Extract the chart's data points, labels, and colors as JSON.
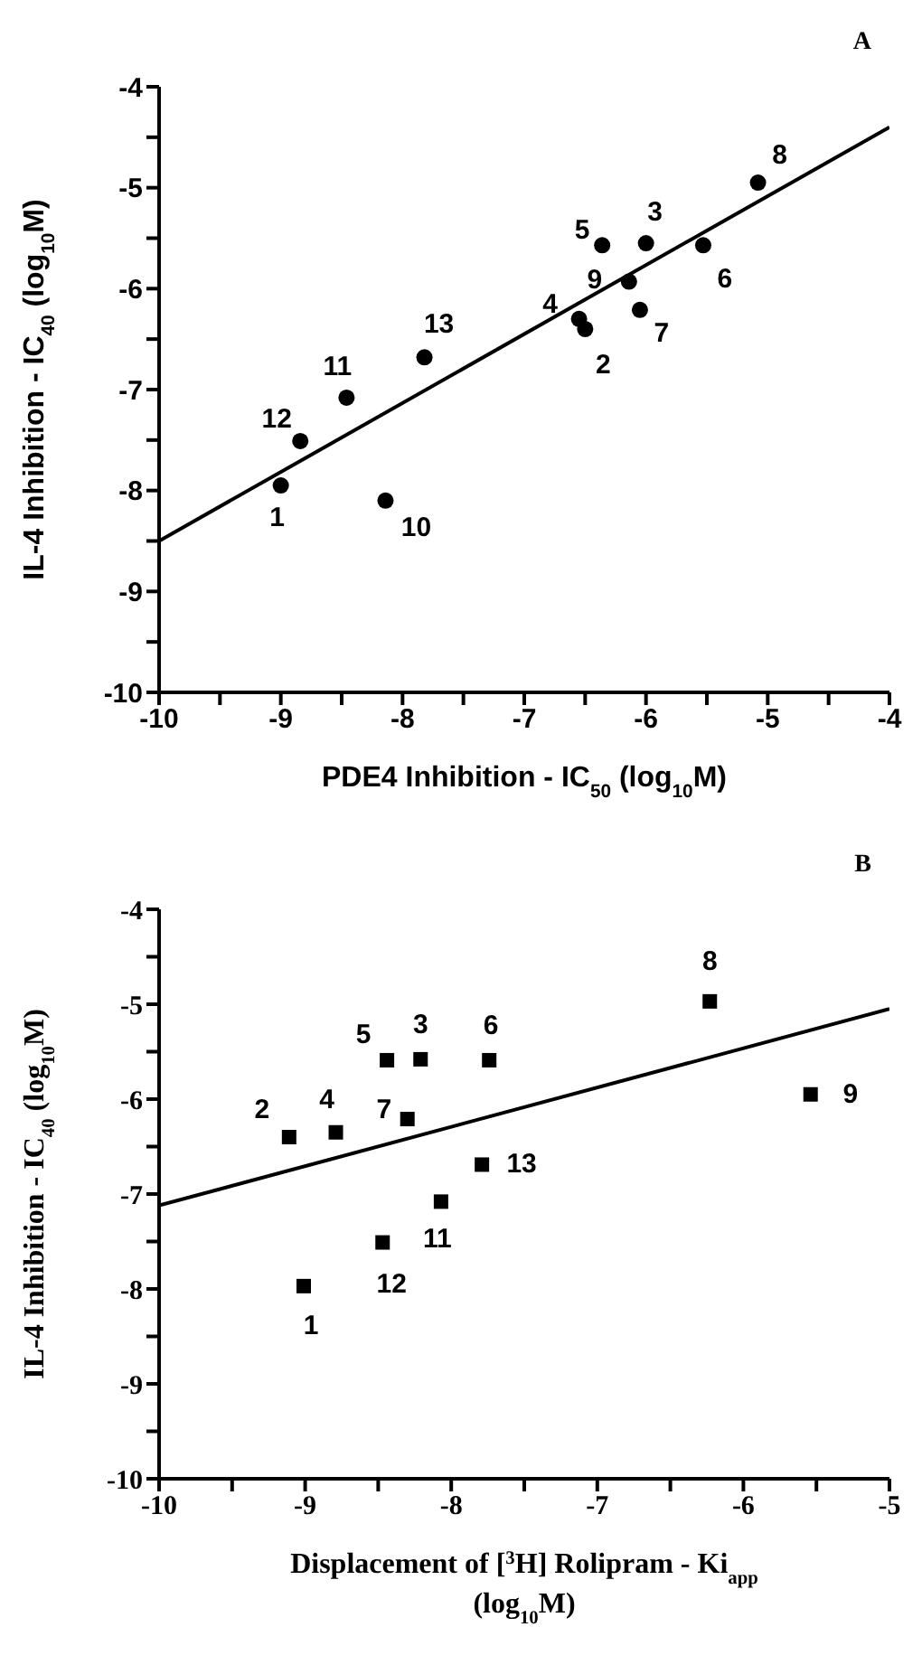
{
  "chart_data": [
    {
      "type": "scatter",
      "title": "A",
      "xlabel": "PDE4 Inhibition - IC$_{50}$ (log$_{10}$M)",
      "ylabel": "IL-4 Inhibition - IC$_{40}$ (log$_{10}$M)",
      "series": [
        {
          "color": "#000000",
          "marker": "circle",
          "x": [
            -9.0,
            -6.5,
            -6.0,
            -6.55,
            -6.36,
            -5.53,
            -6.05,
            -5.08,
            -6.14,
            -8.14,
            -8.46,
            -8.84,
            -7.82
          ],
          "values": [
            -7.95,
            -6.4,
            -5.55,
            -6.3,
            -5.57,
            -5.57,
            -6.21,
            -4.95,
            -5.93,
            -8.1,
            -7.08,
            -7.51,
            -6.68
          ]
        },
        {
          "type": "line",
          "color": "#000000",
          "x": [
            -10,
            -4
          ],
          "values": [
            -8.5,
            -4.4
          ]
        }
      ],
      "annotations": [
        {
          "text": "1",
          "x": -9.0,
          "y": -7.95
        },
        {
          "text": "2",
          "x": -6.5,
          "y": -6.4
        },
        {
          "text": "3",
          "x": -6.0,
          "y": -5.55
        },
        {
          "text": "4",
          "x": -6.55,
          "y": -6.3
        },
        {
          "text": "5",
          "x": -6.36,
          "y": -5.57
        },
        {
          "text": "6",
          "x": -5.53,
          "y": -5.57
        },
        {
          "text": "7",
          "x": -6.05,
          "y": -6.21
        },
        {
          "text": "8",
          "x": -5.08,
          "y": -4.95
        },
        {
          "text": "9",
          "x": -6.14,
          "y": -5.93
        },
        {
          "text": "10",
          "x": -8.14,
          "y": -8.1
        },
        {
          "text": "11",
          "x": -8.46,
          "y": -7.08
        },
        {
          "text": "12",
          "x": -8.84,
          "y": -7.51
        },
        {
          "text": "13",
          "x": -7.82,
          "y": -6.68
        }
      ],
      "xlim": [
        -10,
        -4
      ],
      "xticks": [
        -10,
        {
          "value": -9.5,
          "label": null
        },
        -9,
        {
          "value": -8.5,
          "label": null
        },
        -8,
        {
          "value": -7.5,
          "label": null
        },
        -7,
        {
          "value": -6.5,
          "label": null
        },
        -6,
        {
          "value": -5.5,
          "label": null
        },
        -5,
        {
          "value": -4.5,
          "label": null
        },
        -4
      ],
      "ylim": [
        -10,
        -4
      ],
      "yticks": [
        -10,
        {
          "value": -9.5,
          "label": null
        },
        -9,
        {
          "value": -8.5,
          "label": null
        },
        -8,
        {
          "value": -7.5,
          "label": null
        },
        -7,
        {
          "value": -6.5,
          "label": null
        },
        -6,
        {
          "value": -5.5,
          "label": null
        },
        -5,
        {
          "value": -4.5,
          "label": null
        },
        -4
      ],
      "grid": false,
      "legend": false
    },
    {
      "type": "scatter",
      "title": "B",
      "xlabel": "Displacement of [$^{3}$H] Rolipram - Ki$_{app}$ (log$_{10}$M)",
      "ylabel": "IL-4 Inhibition - IC$_{40}$ (log$_{10}$M)",
      "series": [
        {
          "color": "#000000",
          "marker": "square",
          "x": [
            -9.01,
            -9.11,
            -8.21,
            -8.79,
            -8.44,
            -7.74,
            -8.3,
            -6.23,
            -5.54,
            -8.07,
            -8.47,
            -7.79
          ],
          "values": [
            -7.97,
            -6.4,
            -5.58,
            -6.35,
            -5.59,
            -5.59,
            -6.21,
            -4.97,
            -5.95,
            -7.08,
            -7.51,
            -6.69
          ]
        },
        {
          "type": "line",
          "color": "#000000",
          "x": [
            -10,
            -5
          ],
          "values": [
            -7.12,
            -5.05
          ]
        }
      ],
      "annotations": [
        {
          "text": "1",
          "x": -9.01,
          "y": -7.97
        },
        {
          "text": "2",
          "x": -9.11,
          "y": -6.4
        },
        {
          "text": "3",
          "x": -8.21,
          "y": -5.58
        },
        {
          "text": "4",
          "x": -8.79,
          "y": -6.35
        },
        {
          "text": "5",
          "x": -8.44,
          "y": -5.59
        },
        {
          "text": "6",
          "x": -7.74,
          "y": -5.59
        },
        {
          "text": "7",
          "x": -8.3,
          "y": -6.21
        },
        {
          "text": "8",
          "x": -6.23,
          "y": -4.97
        },
        {
          "text": "9",
          "x": -5.54,
          "y": -5.95
        },
        {
          "text": "11",
          "x": -8.07,
          "y": -7.08
        },
        {
          "text": "12",
          "x": -8.47,
          "y": -7.51
        },
        {
          "text": "13",
          "x": -7.79,
          "y": -6.69
        }
      ],
      "xlim": [
        -10,
        -5
      ],
      "xticks": [
        -10,
        {
          "value": -9.5,
          "label": null
        },
        -9,
        {
          "value": -8.5,
          "label": null
        },
        -8,
        {
          "value": -7.5,
          "label": null
        },
        -7,
        {
          "value": -6.5,
          "label": null
        },
        -6,
        {
          "value": -5.5,
          "label": null
        },
        -5
      ],
      "ylim": [
        -10,
        -4
      ],
      "yticks": [
        -10,
        {
          "value": -9.5,
          "label": null
        },
        -9,
        {
          "value": -8.5,
          "label": null
        },
        -8,
        {
          "value": -7.5,
          "label": null
        },
        -7,
        {
          "value": -6.5,
          "label": null
        },
        -6,
        {
          "value": -5.5,
          "label": null
        },
        -5,
        {
          "value": -4.5,
          "label": null
        },
        -4
      ],
      "grid": false,
      "legend": false
    }
  ]
}
